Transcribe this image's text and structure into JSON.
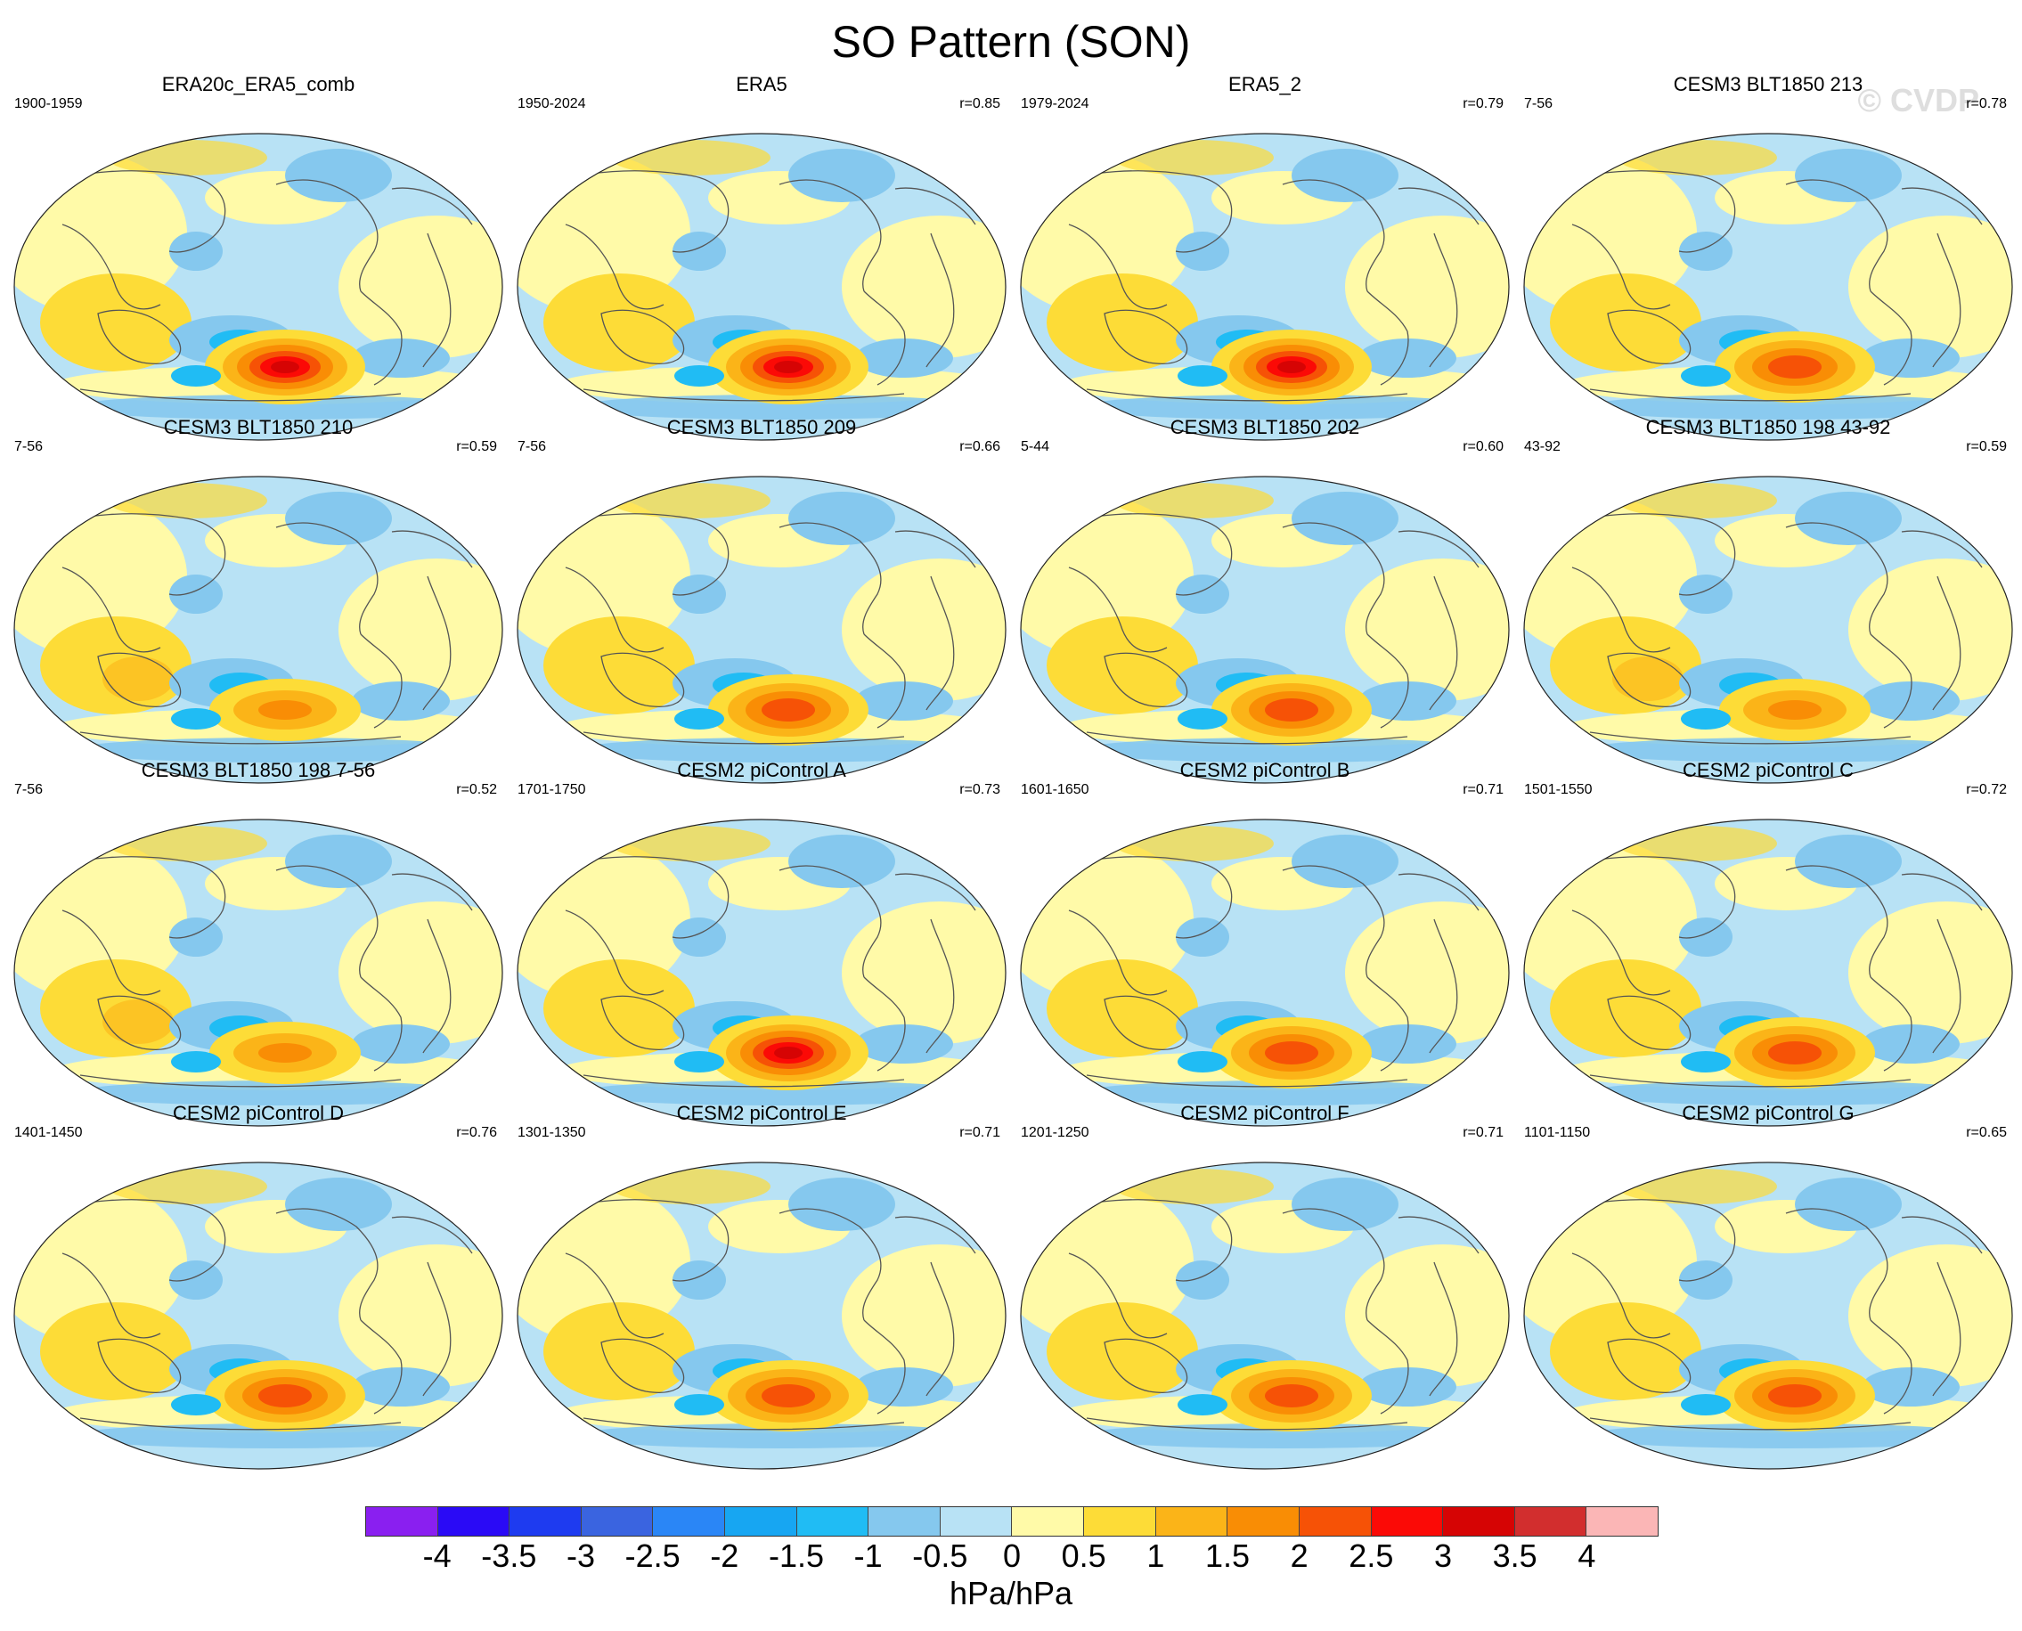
{
  "title": "SO Pattern (SON)",
  "watermark": "© CVDP",
  "colorbar": {
    "labels": [
      "-4",
      "-3.5",
      "-3",
      "-2.5",
      "-2",
      "-1.5",
      "-1",
      "-0.5",
      "0",
      "0.5",
      "1",
      "1.5",
      "2",
      "2.5",
      "3",
      "3.5",
      "4"
    ],
    "colors": [
      "#8a1ff0",
      "#2a0af6",
      "#1e3bf0",
      "#3a64e0",
      "#2a86f6",
      "#17a6f2",
      "#20bcf4",
      "#85c8ee",
      "#b8e2f5",
      "#fffaa8",
      "#fddc37",
      "#fbb418",
      "#f98d05",
      "#f65206",
      "#fb0a06",
      "#d60404",
      "#d22e2e",
      "#fbb6b6"
    ],
    "units": "hPa/hPa"
  },
  "panels": [
    {
      "title": "ERA20c_ERA5_comb",
      "period": "1900-1959",
      "r": ""
    },
    {
      "title": "ERA5",
      "period": "1950-2024",
      "r": "r=0.85"
    },
    {
      "title": "ERA5_2",
      "period": "1979-2024",
      "r": "r=0.79"
    },
    {
      "title": "CESM3 BLT1850 213",
      "period": "7-56",
      "r": "r=0.78"
    },
    {
      "title": "CESM3 BLT1850 210",
      "period": "7-56",
      "r": "r=0.59"
    },
    {
      "title": "CESM3 BLT1850 209",
      "period": "7-56",
      "r": "r=0.66"
    },
    {
      "title": "CESM3 BLT1850 202",
      "period": "5-44",
      "r": "r=0.60"
    },
    {
      "title": "CESM3 BLT1850 198 43-92",
      "period": "43-92",
      "r": "r=0.59"
    },
    {
      "title": "CESM3 BLT1850 198 7-56",
      "period": "7-56",
      "r": "r=0.52"
    },
    {
      "title": "CESM2 piControl A",
      "period": "1701-1750",
      "r": "r=0.73"
    },
    {
      "title": "CESM2 piControl B",
      "period": "1601-1650",
      "r": "r=0.71"
    },
    {
      "title": "CESM2 piControl C",
      "period": "1501-1550",
      "r": "r=0.72"
    },
    {
      "title": "CESM2 piControl D",
      "period": "1401-1450",
      "r": "r=0.76"
    },
    {
      "title": "CESM2 piControl E",
      "period": "1301-1350",
      "r": "r=0.71"
    },
    {
      "title": "CESM2 piControl F",
      "period": "1201-1250",
      "r": "r=0.71"
    },
    {
      "title": "CESM2 piControl G",
      "period": "1101-1150",
      "r": "r=0.65"
    }
  ],
  "chart_data": {
    "type": "heatmap",
    "title": "SO Pattern (SON)",
    "xlabel": "",
    "ylabel": "",
    "colorbar_units": "hPa/hPa",
    "colorbar_range": [
      -4,
      4
    ],
    "colorbar_step": 0.5,
    "projection": "global map (Pacific-centered ellipse)",
    "n_panels": 16,
    "layout": "4x4 grid"
  }
}
